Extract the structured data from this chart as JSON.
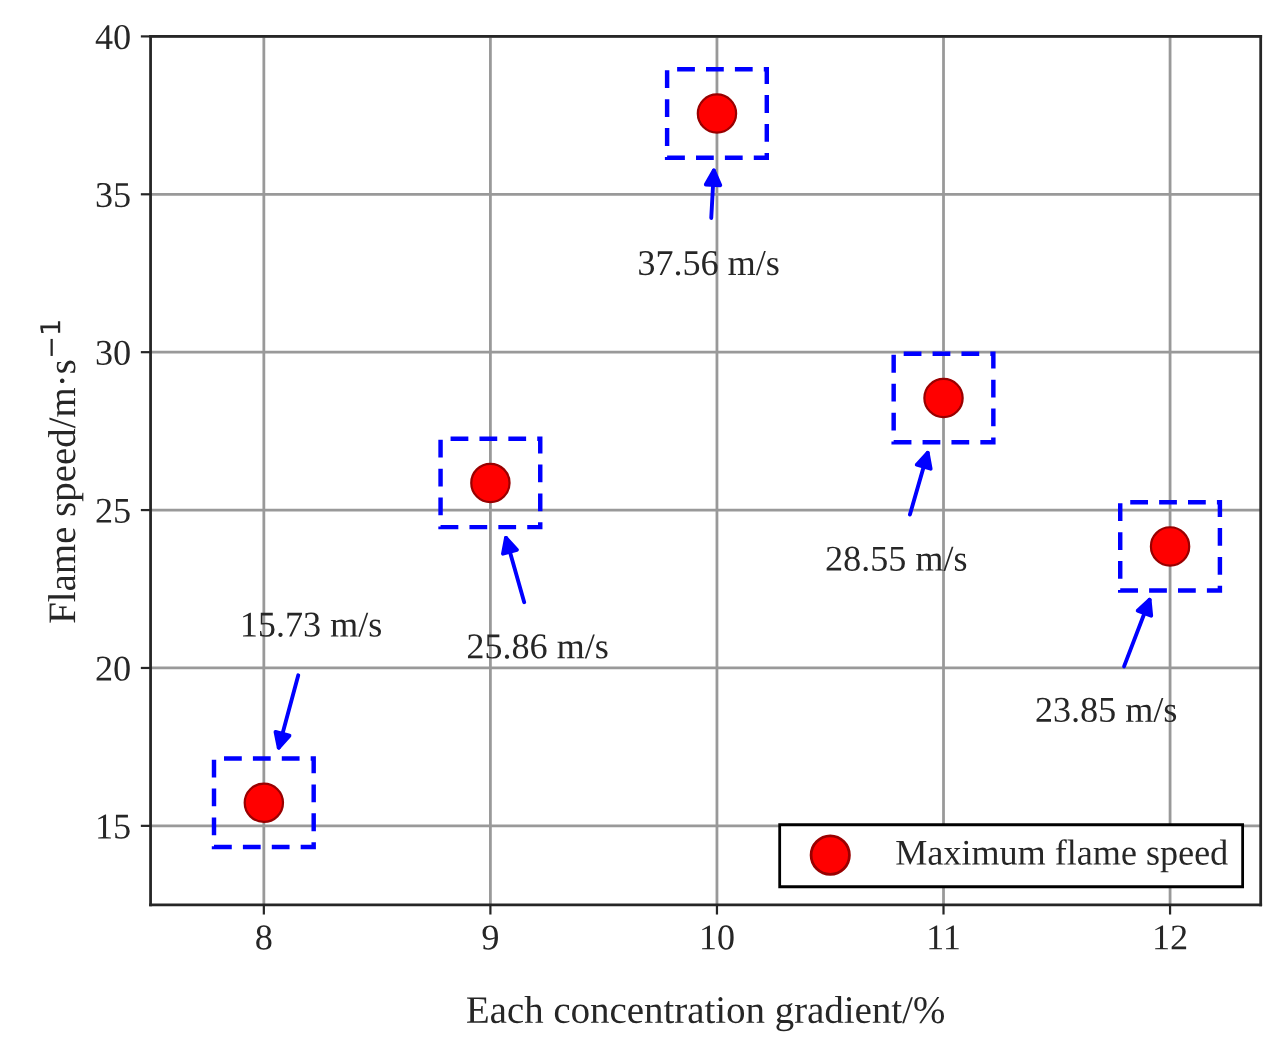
{
  "chart_data": {
    "type": "scatter",
    "xlabel": "Each concentration gradient/%",
    "ylabel": "Flame speed/m·s$^{−1}$",
    "x": [
      8,
      9,
      10,
      11,
      12
    ],
    "series": [
      {
        "name": "Maximum flame speed",
        "color": "#ff0000",
        "values": [
          15.73,
          25.86,
          37.56,
          28.55,
          23.85
        ]
      }
    ],
    "xlim": [
      7.5,
      12.4
    ],
    "xticks": [
      8,
      9,
      10,
      11,
      12
    ],
    "ylim": [
      12.5,
      40
    ],
    "yticks": [
      15,
      20,
      25,
      30,
      35,
      40
    ],
    "grid": true,
    "legend": "bottom right",
    "marker": "circle",
    "annotations": [
      "15.73 m/s",
      "25.86 m/s",
      "37.56 m/s",
      "28.55 m/s",
      "23.85 m/s"
    ]
  }
}
